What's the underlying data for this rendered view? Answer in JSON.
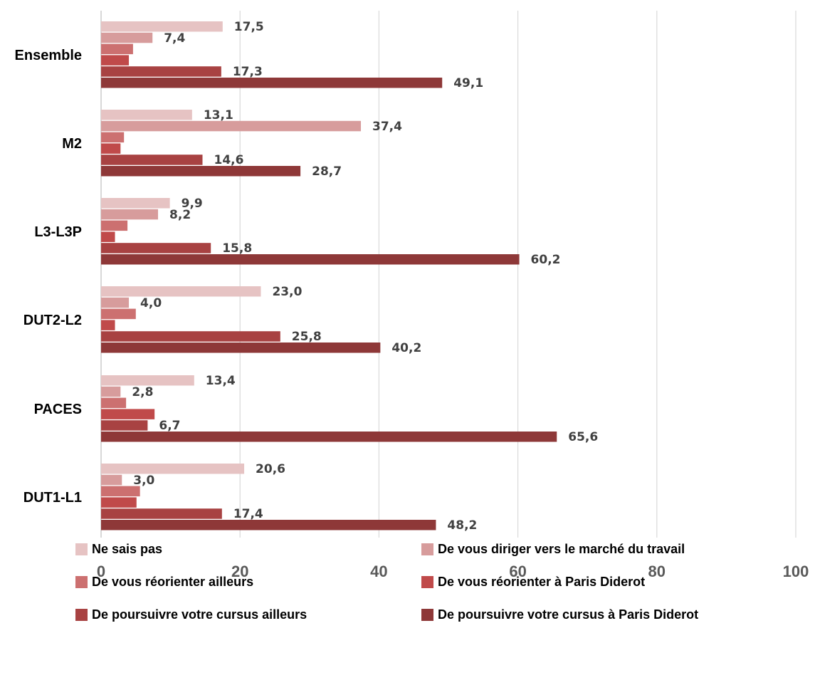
{
  "chart_data": {
    "type": "bar",
    "orientation": "horizontal",
    "categories": [
      "Ensemble",
      "M2",
      "L3-L3P",
      "DUT2-L2",
      "PACES",
      "DUT1-L1"
    ],
    "series": [
      {
        "name": "Ne sais pas",
        "color": "#E6C3C3",
        "values": [
          17.5,
          13.1,
          9.9,
          23.0,
          13.4,
          20.6
        ],
        "labels": [
          "17,5",
          "13,1",
          "9,9",
          "23,0",
          "13,4",
          "20,6"
        ]
      },
      {
        "name": "De vous diriger vers le marché du travail",
        "color": "#D79C9C",
        "values": [
          7.4,
          37.4,
          8.2,
          4.0,
          2.8,
          3.0
        ],
        "labels": [
          "7,4",
          "37,4",
          "8,2",
          "4,0",
          "2,8",
          "3,0"
        ]
      },
      {
        "name": "De vous réorienter ailleurs",
        "color": "#CC7070",
        "values": [
          4.6,
          3.3,
          3.8,
          5.0,
          3.6,
          5.6
        ],
        "labels": [
          "",
          "",
          "",
          "",
          "",
          ""
        ]
      },
      {
        "name": "De vous réorienter à Paris Diderot",
        "color": "#C04A4A",
        "values": [
          4.0,
          2.8,
          2.0,
          2.0,
          7.7,
          5.1
        ],
        "labels": [
          "",
          "",
          "",
          "",
          "",
          ""
        ]
      },
      {
        "name": "De poursuivre votre cursus ailleurs",
        "color": "#A84242",
        "values": [
          17.3,
          14.6,
          15.8,
          25.8,
          6.7,
          17.4
        ],
        "labels": [
          "17,3",
          "14,6",
          "15,8",
          "25,8",
          "6,7",
          "17,4"
        ]
      },
      {
        "name": "De poursuivre votre cursus à Paris Diderot",
        "color": "#8E3838",
        "values": [
          49.1,
          28.7,
          60.2,
          40.2,
          65.6,
          48.2
        ],
        "labels": [
          "49,1",
          "28,7",
          "60,2",
          "40,2",
          "65,6",
          "48,2"
        ]
      }
    ],
    "xlim": [
      0,
      100
    ],
    "xticks": [
      "0",
      "20",
      "40",
      "60",
      "80",
      "100"
    ],
    "grid": "vertical",
    "legend_position": "bottom",
    "title": "",
    "xlabel": "",
    "ylabel": ""
  }
}
